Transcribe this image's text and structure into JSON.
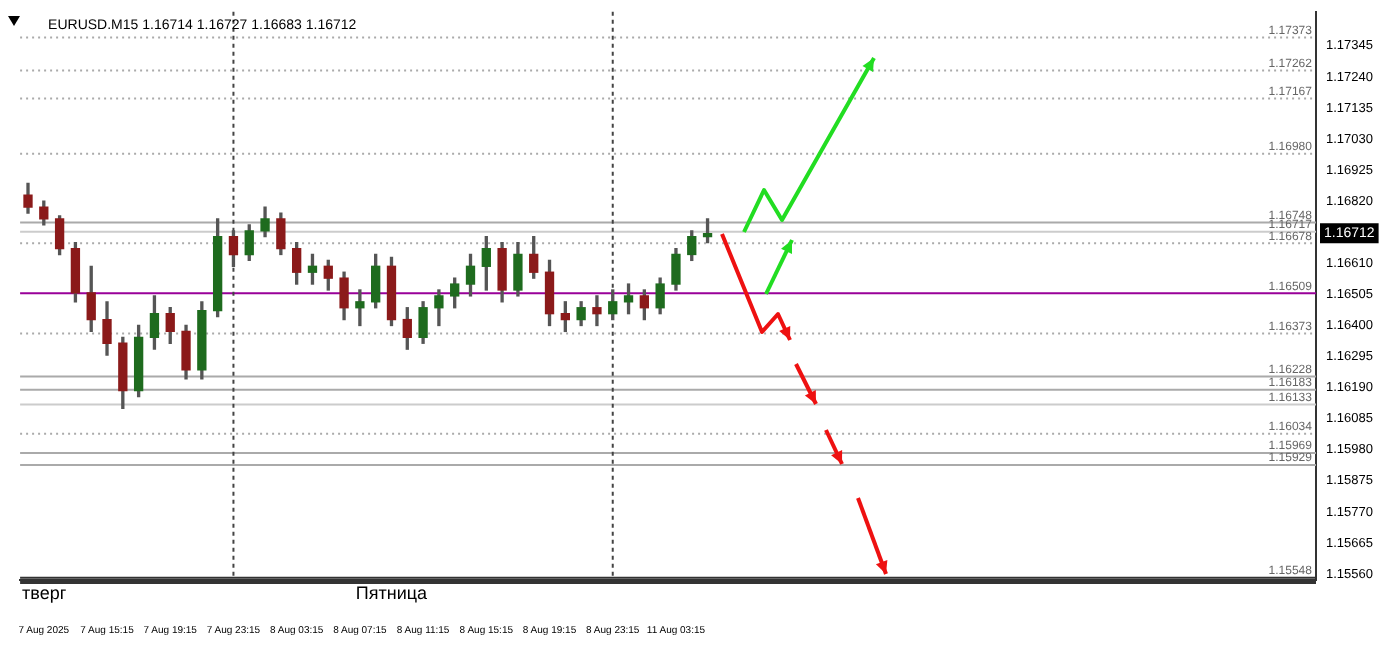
{
  "chart_data": {
    "type": "candlestick",
    "title": "EURUSD.M15 1.16714 1.16727 1.16683 1.16712",
    "categories": [
      null,
      "7 Aug 2025",
      null,
      null,
      null,
      "7 Aug 15:15",
      null,
      null,
      null,
      "7 Aug 19:15",
      null,
      null,
      null,
      "7 Aug 23:15",
      null,
      null,
      null,
      "8 Aug 03:15",
      null,
      null,
      null,
      "8 Aug 07:15",
      null,
      null,
      null,
      "8 Aug 11:15",
      null,
      null,
      null,
      "8 Aug 15:15",
      null,
      null,
      null,
      "8 Aug 19:15",
      null,
      null,
      null,
      "8 Aug 23:15",
      null,
      null,
      null,
      "11 Aug 03:15",
      null,
      null,
      null,
      null,
      null,
      null,
      null,
      null,
      null,
      null,
      null,
      null,
      null,
      null,
      null,
      null,
      null,
      null,
      null,
      null,
      null,
      null,
      null,
      null,
      null,
      null,
      null,
      null,
      null,
      null,
      null,
      null,
      null,
      null,
      null,
      null,
      null,
      null,
      null,
      null
    ],
    "ohlc": [
      [
        1.1684,
        1.1688,
        1.1678,
        1.168
      ],
      [
        1.168,
        1.1682,
        1.1674,
        1.1676
      ],
      [
        1.1676,
        1.1677,
        1.1664,
        1.1666
      ],
      [
        1.1666,
        1.1668,
        1.1648,
        1.1651
      ],
      [
        1.1651,
        1.166,
        1.1638,
        1.1642
      ],
      [
        1.1642,
        1.1648,
        1.163,
        1.1634
      ],
      [
        1.1634,
        1.1636,
        1.1612,
        1.1618
      ],
      [
        1.1618,
        1.164,
        1.1616,
        1.1636
      ],
      [
        1.1636,
        1.165,
        1.1632,
        1.1644
      ],
      [
        1.1644,
        1.1646,
        1.1634,
        1.1638
      ],
      [
        1.1638,
        1.164,
        1.1622,
        1.1625
      ],
      [
        1.1625,
        1.1648,
        1.1622,
        1.1645
      ],
      [
        1.1645,
        1.1676,
        1.1643,
        1.167
      ],
      [
        1.167,
        1.1672,
        1.166,
        1.1664
      ],
      [
        1.1664,
        1.1674,
        1.1662,
        1.1672
      ],
      [
        1.1672,
        1.168,
        1.167,
        1.1676
      ],
      [
        1.1676,
        1.1678,
        1.1664,
        1.1666
      ],
      [
        1.1666,
        1.1668,
        1.1654,
        1.1658
      ],
      [
        1.1658,
        1.1664,
        1.1654,
        1.166
      ],
      [
        1.166,
        1.1662,
        1.1652,
        1.1656
      ],
      [
        1.1656,
        1.1658,
        1.1642,
        1.1646
      ],
      [
        1.1646,
        1.1652,
        1.164,
        1.1648
      ],
      [
        1.1648,
        1.1664,
        1.1646,
        1.166
      ],
      [
        1.166,
        1.1663,
        1.164,
        1.1642
      ],
      [
        1.1642,
        1.1646,
        1.1632,
        1.1636
      ],
      [
        1.1636,
        1.1648,
        1.1634,
        1.1646
      ],
      [
        1.1646,
        1.1652,
        1.164,
        1.165
      ],
      [
        1.165,
        1.1656,
        1.1646,
        1.1654
      ],
      [
        1.1654,
        1.1664,
        1.165,
        1.166
      ],
      [
        1.166,
        1.167,
        1.1652,
        1.1666
      ],
      [
        1.1666,
        1.1668,
        1.1648,
        1.1652
      ],
      [
        1.1652,
        1.1668,
        1.165,
        1.1664
      ],
      [
        1.1664,
        1.167,
        1.1656,
        1.1658
      ],
      [
        1.1658,
        1.1662,
        1.164,
        1.1644
      ],
      [
        1.1644,
        1.1648,
        1.1638,
        1.1642
      ],
      [
        1.1642,
        1.1648,
        1.164,
        1.1646
      ],
      [
        1.1646,
        1.165,
        1.164,
        1.1644
      ],
      [
        1.1644,
        1.1652,
        1.1642,
        1.1648
      ],
      [
        1.1648,
        1.1654,
        1.1644,
        1.165
      ],
      [
        1.165,
        1.1652,
        1.1642,
        1.1646
      ],
      [
        1.1646,
        1.1656,
        1.1644,
        1.1654
      ],
      [
        1.1654,
        1.1666,
        1.1652,
        1.1664
      ],
      [
        1.1664,
        1.1672,
        1.1662,
        1.167
      ],
      [
        1.167,
        1.1676,
        1.1668,
        1.1671
      ],
      null,
      null,
      null,
      null,
      null,
      null,
      null,
      null,
      null,
      null,
      null,
      null,
      null,
      null,
      null,
      null,
      null,
      null,
      null,
      null,
      null,
      null,
      null,
      null,
      null,
      null,
      null,
      null,
      null,
      null,
      null,
      null,
      null,
      null,
      null,
      null,
      null,
      null
    ],
    "colors": [
      "#8b1a1a",
      "#8b1a1a",
      "#8b1a1a",
      "#8b1a1a",
      "#8b1a1a",
      "#8b1a1a",
      "#8b1a1a",
      "#1e6b1e",
      "#1e6b1e",
      "#8b1a1a",
      "#8b1a1a",
      "#1e6b1e",
      "#1e6b1e",
      "#8b1a1a",
      "#1e6b1e",
      "#1e6b1e",
      "#8b1a1a",
      "#8b1a1a",
      "#1e6b1e",
      "#8b1a1a",
      "#8b1a1a",
      "#1e6b1e",
      "#1e6b1e",
      "#8b1a1a",
      "#8b1a1a",
      "#1e6b1e",
      "#1e6b1e",
      "#1e6b1e",
      "#1e6b1e",
      "#1e6b1e",
      "#8b1a1a",
      "#1e6b1e",
      "#8b1a1a",
      "#8b1a1a",
      "#8b1a1a",
      "#1e6b1e",
      "#8b1a1a",
      "#1e6b1e",
      "#1e6b1e",
      "#8b1a1a",
      "#1e6b1e",
      "#1e6b1e",
      "#1e6b1e",
      "#1e6b1e",
      null,
      null,
      null,
      null,
      null,
      null,
      null,
      null,
      null,
      null,
      null,
      null,
      null,
      null,
      null,
      null,
      null,
      null,
      null,
      null,
      null,
      null,
      null,
      null,
      null,
      null,
      null,
      null,
      null,
      null,
      null,
      null,
      null,
      null,
      null,
      null,
      null,
      null
    ],
    "ylim": [
      1.1554,
      1.1746
    ],
    "yticks": [
      {
        "value": 1.17345,
        "label": "1.17345"
      },
      {
        "value": 1.1724,
        "label": "1.17240"
      },
      {
        "value": 1.17135,
        "label": "1.17135"
      },
      {
        "value": 1.1703,
        "label": "1.17030"
      },
      {
        "value": 1.16925,
        "label": "1.16925"
      },
      {
        "value": 1.1682,
        "label": "1.16820"
      },
      {
        "value": 1.1661,
        "label": "1.16610"
      },
      {
        "value": 1.16505,
        "label": "1.16505"
      },
      {
        "value": 1.164,
        "label": "1.16400"
      },
      {
        "value": 1.16295,
        "label": "1.16295"
      },
      {
        "value": 1.1619,
        "label": "1.16190"
      },
      {
        "value": 1.16085,
        "label": "1.16085"
      },
      {
        "value": 1.1598,
        "label": "1.15980"
      },
      {
        "value": 1.15875,
        "label": "1.15875"
      },
      {
        "value": 1.1577,
        "label": "1.15770"
      },
      {
        "value": 1.15665,
        "label": "1.15665"
      },
      {
        "value": 1.1556,
        "label": "1.15560"
      }
    ],
    "ref_lines": [
      {
        "axis": "y",
        "value": 1.17373,
        "label": "1.17373",
        "color": "#aaaaaa",
        "line_style": "dotted"
      },
      {
        "axis": "y",
        "value": 1.17262,
        "label": "1.17262",
        "color": "#aaaaaa",
        "line_style": "dotted"
      },
      {
        "axis": "y",
        "value": 1.17167,
        "label": "1.17167",
        "color": "#aaaaaa",
        "line_style": "dotted"
      },
      {
        "axis": "y",
        "value": 1.1698,
        "label": "1.16980",
        "color": "#aaaaaa",
        "line_style": "dotted"
      },
      {
        "axis": "y",
        "value": 1.16748,
        "label": "1.16748",
        "color": "#aaaaaa",
        "line_style": "solid"
      },
      {
        "axis": "y",
        "value": 1.16717,
        "label": "1.16717",
        "color": "#cccccc",
        "line_style": "solid"
      },
      {
        "axis": "y",
        "value": 1.16678,
        "label": "1.16678",
        "color": "#aaaaaa",
        "line_style": "dotted"
      },
      {
        "axis": "y",
        "value": 1.16509,
        "label": "1.16509",
        "color": "#990099",
        "line_style": "solid"
      },
      {
        "axis": "y",
        "value": 1.16373,
        "label": "1.16373",
        "color": "#aaaaaa",
        "line_style": "dotted"
      },
      {
        "axis": "y",
        "value": 1.16228,
        "label": "1.16228",
        "color": "#aaaaaa",
        "line_style": "solid"
      },
      {
        "axis": "y",
        "value": 1.16183,
        "label": "1.16183",
        "color": "#aaaaaa",
        "line_style": "solid"
      },
      {
        "axis": "y",
        "value": 1.16133,
        "label": "1.16133",
        "color": "#cccccc",
        "line_style": "solid"
      },
      {
        "axis": "y",
        "value": 1.16034,
        "label": "1.16034",
        "color": "#aaaaaa",
        "line_style": "dotted"
      },
      {
        "axis": "y",
        "value": 1.15969,
        "label": "1.15969",
        "color": "#aaaaaa",
        "line_style": "solid"
      },
      {
        "axis": "y",
        "value": 1.15929,
        "label": "1.15929",
        "color": "#aaaaaa",
        "line_style": "solid"
      },
      {
        "axis": "y",
        "value": 1.15548,
        "label": "1.15548",
        "color": "#333333",
        "line_style": "solid"
      },
      {
        "axis": "x",
        "value": "7 Aug 23:15",
        "label": null,
        "color": "#444444",
        "line_style": "dashed"
      },
      {
        "axis": "x",
        "value": "8 Aug 23:15",
        "label": null,
        "color": "#444444",
        "line_style": "dashed"
      }
    ],
    "annotations": [
      "тверг",
      "Пятница",
      {
        "text": "1.16712",
        "y": 1.16712
      }
    ],
    "grid": false,
    "legend": false
  }
}
